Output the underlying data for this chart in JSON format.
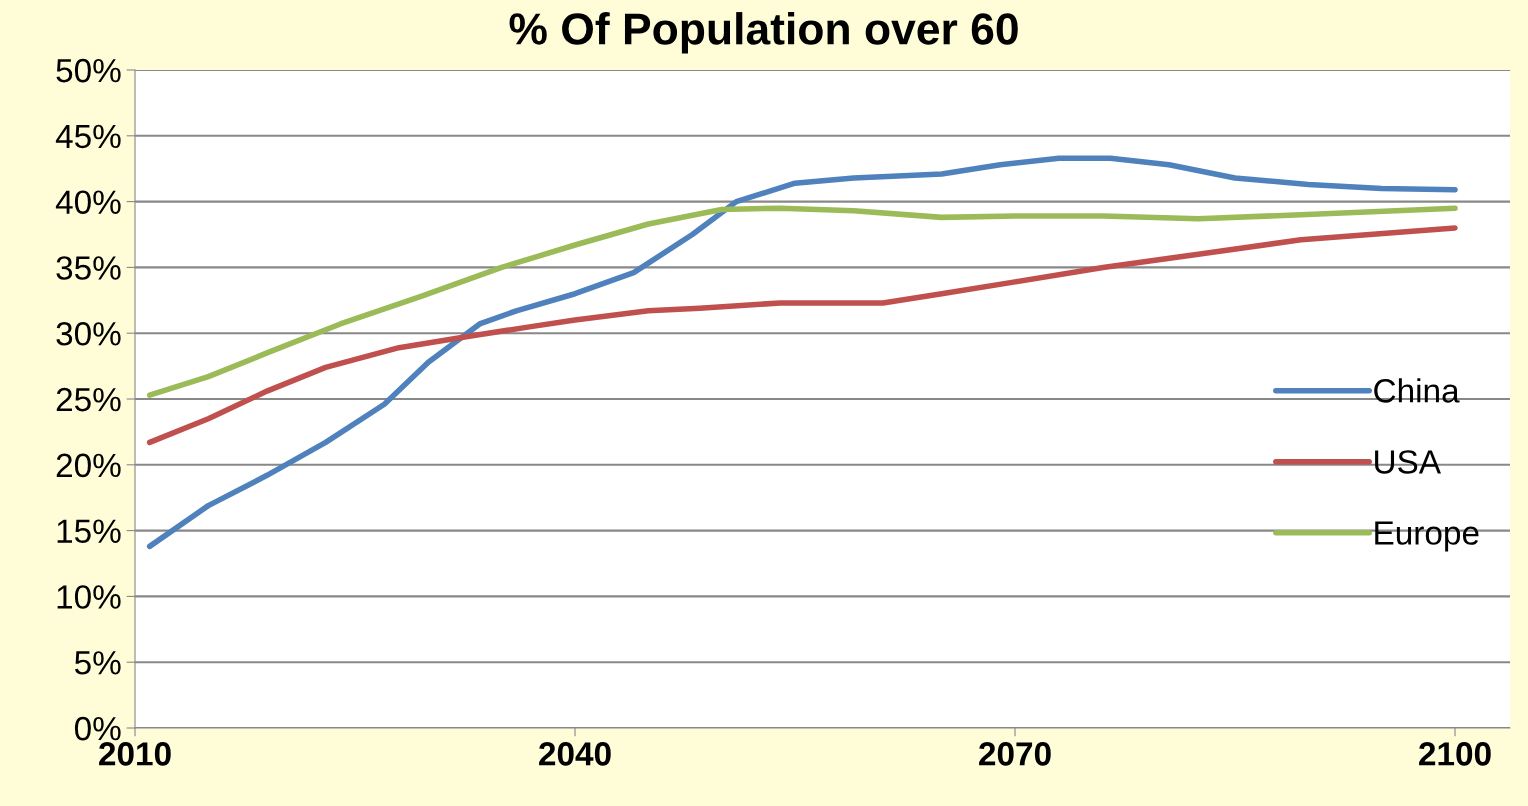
{
  "chart_data": {
    "type": "line",
    "title": "% Of Population over 60",
    "xlim": [
      2010,
      2103.75
    ],
    "xticks": [
      2010,
      2040,
      2070,
      2100
    ],
    "ylim": [
      0,
      50
    ],
    "yticks": [
      {
        "value": 0,
        "label": "0%"
      },
      {
        "value": 5,
        "label": "5%"
      },
      {
        "value": 10,
        "label": "10%"
      },
      {
        "value": 15,
        "label": "15%"
      },
      {
        "value": 20,
        "label": "20%"
      },
      {
        "value": 25,
        "label": "25%"
      },
      {
        "value": 30,
        "label": "30%"
      },
      {
        "value": 35,
        "label": "35%"
      },
      {
        "value": 40,
        "label": "40%"
      },
      {
        "value": 45,
        "label": "45%"
      },
      {
        "value": 50,
        "label": "50%"
      }
    ],
    "grid": "y",
    "legend": "center right",
    "line_style": "solid",
    "marker": "none",
    "series": [
      {
        "name": "China",
        "color": "#4f81bd",
        "x": [
          2011,
          2015,
          2019,
          2023,
          2027,
          2030,
          2033.5,
          2036,
          2040,
          2044,
          2048,
          2051,
          2055,
          2059,
          2065,
          2069,
          2073,
          2076.5,
          2080.5,
          2085,
          2090,
          2095,
          2100
        ],
        "values": [
          13.8,
          16.9,
          19.2,
          21.7,
          24.6,
          27.8,
          30.7,
          31.7,
          33.0,
          34.6,
          37.5,
          40.0,
          41.4,
          41.8,
          42.1,
          42.8,
          43.3,
          43.3,
          42.8,
          41.8,
          41.3,
          41.0,
          40.9
        ]
      },
      {
        "name": "USA",
        "color": "#c0504d",
        "x": [
          2011,
          2015,
          2019,
          2023,
          2028,
          2033,
          2037,
          2040,
          2045,
          2048.5,
          2054,
          2061,
          2065,
          2070,
          2076,
          2082.5,
          2089.5,
          2100
        ],
        "values": [
          21.7,
          23.5,
          25.6,
          27.4,
          28.9,
          29.8,
          30.5,
          31.0,
          31.7,
          31.9,
          32.3,
          32.3,
          33.0,
          33.9,
          35.0,
          36.0,
          37.1,
          38.0
        ]
      },
      {
        "name": "Europe",
        "color": "#9bbb59",
        "x": [
          2011,
          2015,
          2019,
          2024,
          2029.5,
          2035,
          2040,
          2045,
          2050,
          2054,
          2059,
          2065,
          2070,
          2076,
          2082.5,
          2089.5,
          2100
        ],
        "values": [
          25.3,
          26.7,
          28.5,
          30.7,
          32.8,
          35.0,
          36.7,
          38.3,
          39.4,
          39.5,
          39.3,
          38.8,
          38.9,
          38.9,
          38.7,
          39.0,
          39.5
        ]
      }
    ]
  }
}
